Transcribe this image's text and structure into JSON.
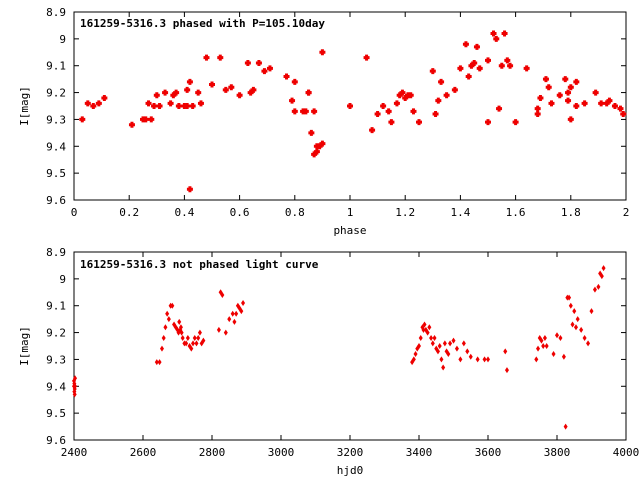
{
  "chart_data": [
    {
      "type": "scatter",
      "title": "161259-5316.3 phased with P=105.10day",
      "xlabel": "phase",
      "ylabel": "I[mag]",
      "xlim": [
        0,
        2
      ],
      "ylim": [
        8.9,
        9.6
      ],
      "y_inverted": true,
      "xticks": [
        0,
        0.2,
        0.4,
        0.6,
        0.8,
        1,
        1.2,
        1.4,
        1.6,
        1.8,
        2
      ],
      "yticks": [
        8.9,
        9,
        9.1,
        9.2,
        9.3,
        9.4,
        9.5,
        9.6
      ],
      "grid": false,
      "marker_color": "#ee0000",
      "marker": "star",
      "x": [
        0.03,
        0.05,
        0.07,
        0.09,
        0.11,
        0.21,
        0.25,
        0.26,
        0.27,
        0.28,
        0.29,
        0.3,
        0.31,
        0.33,
        0.35,
        0.36,
        0.37,
        0.38,
        0.4,
        0.41,
        0.41,
        0.42,
        0.42,
        0.43,
        0.45,
        0.46,
        0.48,
        0.5,
        0.53,
        0.55,
        0.57,
        0.6,
        0.63,
        0.64,
        0.65,
        0.67,
        0.69,
        0.71,
        0.77,
        0.79,
        0.8,
        0.8,
        0.83,
        0.84,
        0.85,
        0.85,
        0.86,
        0.87,
        0.87,
        0.88,
        0.88,
        0.89,
        0.9,
        0.9,
        1.0,
        1.06,
        1.08,
        1.1,
        1.12,
        1.14,
        1.15,
        1.17,
        1.18,
        1.19,
        1.2,
        1.21,
        1.22,
        1.23,
        1.25,
        1.3,
        1.31,
        1.32,
        1.33,
        1.35,
        1.38,
        1.4,
        1.42,
        1.43,
        1.44,
        1.45,
        1.46,
        1.47,
        1.5,
        1.5,
        1.52,
        1.53,
        1.54,
        1.55,
        1.56,
        1.57,
        1.58,
        1.6,
        1.64,
        1.68,
        1.68,
        1.69,
        1.71,
        1.72,
        1.73,
        1.76,
        1.78,
        1.79,
        1.79,
        1.8,
        1.8,
        1.82,
        1.82,
        1.85,
        1.89,
        1.91,
        1.93,
        1.94,
        1.96,
        1.98,
        1.99
      ],
      "y": [
        9.3,
        9.24,
        9.25,
        9.24,
        9.22,
        9.32,
        9.3,
        9.3,
        9.24,
        9.3,
        9.25,
        9.21,
        9.25,
        9.2,
        9.24,
        9.21,
        9.2,
        9.25,
        9.25,
        9.25,
        9.19,
        9.16,
        9.56,
        9.25,
        9.2,
        9.24,
        9.07,
        9.17,
        9.07,
        9.19,
        9.18,
        9.21,
        9.09,
        9.2,
        9.19,
        9.09,
        9.12,
        9.11,
        9.14,
        9.23,
        9.27,
        9.16,
        9.27,
        9.27,
        9.2,
        9.2,
        9.35,
        9.27,
        9.43,
        9.4,
        9.42,
        9.4,
        9.39,
        9.05,
        9.25,
        9.07,
        9.34,
        9.28,
        9.25,
        9.27,
        9.31,
        9.24,
        9.21,
        9.2,
        9.22,
        9.21,
        9.21,
        9.27,
        9.31,
        9.12,
        9.28,
        9.23,
        9.16,
        9.21,
        9.19,
        9.11,
        9.02,
        9.14,
        9.1,
        9.09,
        9.03,
        9.11,
        9.31,
        9.08,
        8.98,
        9.0,
        9.26,
        9.1,
        8.98,
        9.08,
        9.1,
        9.31,
        9.11,
        9.26,
        9.28,
        9.22,
        9.15,
        9.18,
        9.24,
        9.21,
        9.15,
        9.2,
        9.23,
        9.18,
        9.3,
        9.16,
        9.25,
        9.24,
        9.2,
        9.24,
        9.24,
        9.23,
        9.25,
        9.26,
        9.28
      ]
    },
    {
      "type": "scatter",
      "title": "161259-5316.3 not phased light curve",
      "xlabel": "hjd0",
      "ylabel": "I[mag]",
      "xlim": [
        2400,
        4000
      ],
      "ylim": [
        8.9,
        9.6
      ],
      "y_inverted": true,
      "xticks": [
        2400,
        2600,
        2800,
        3000,
        3200,
        3400,
        3600,
        3800,
        4000
      ],
      "yticks": [
        8.9,
        9,
        9.1,
        9.2,
        9.3,
        9.4,
        9.5,
        9.6
      ],
      "grid": false,
      "marker_color": "#ee0000",
      "marker": "diamond",
      "x": [
        2400,
        2400,
        2401,
        2401,
        2402,
        2402,
        2403,
        2403,
        2640,
        2648,
        2655,
        2660,
        2665,
        2670,
        2675,
        2680,
        2685,
        2690,
        2695,
        2700,
        2703,
        2705,
        2708,
        2710,
        2712,
        2715,
        2720,
        2725,
        2730,
        2735,
        2740,
        2745,
        2750,
        2755,
        2760,
        2765,
        2770,
        2775,
        2820,
        2825,
        2830,
        2840,
        2850,
        2860,
        2865,
        2870,
        2875,
        2880,
        2885,
        2890,
        3380,
        3385,
        3390,
        3395,
        3400,
        3405,
        3410,
        3413,
        3416,
        3420,
        3425,
        3430,
        3435,
        3440,
        3445,
        3450,
        3455,
        3460,
        3465,
        3470,
        3475,
        3480,
        3485,
        3490,
        3500,
        3510,
        3520,
        3530,
        3540,
        3550,
        3570,
        3590,
        3600,
        3650,
        3655,
        3740,
        3745,
        3750,
        3755,
        3760,
        3765,
        3770,
        3790,
        3800,
        3810,
        3820,
        3825,
        3830,
        3835,
        3840,
        3845,
        3850,
        3855,
        3860,
        3870,
        3880,
        3890,
        3900,
        3910,
        3920,
        3925,
        3930,
        3935
      ],
      "y": [
        9.38,
        9.4,
        9.42,
        9.39,
        9.41,
        9.43,
        9.4,
        9.37,
        9.31,
        9.31,
        9.26,
        9.22,
        9.18,
        9.13,
        9.15,
        9.1,
        9.1,
        9.17,
        9.18,
        9.19,
        9.2,
        9.16,
        9.19,
        9.18,
        9.2,
        9.22,
        9.24,
        9.24,
        9.22,
        9.25,
        9.26,
        9.24,
        9.22,
        9.24,
        9.22,
        9.2,
        9.24,
        9.23,
        9.19,
        9.05,
        9.06,
        9.2,
        9.15,
        9.13,
        9.16,
        9.13,
        9.1,
        9.11,
        9.12,
        9.09,
        9.31,
        9.3,
        9.28,
        9.26,
        9.25,
        9.22,
        9.18,
        9.19,
        9.17,
        9.19,
        9.2,
        9.18,
        9.22,
        9.24,
        9.22,
        9.26,
        9.27,
        9.25,
        9.3,
        9.33,
        9.24,
        9.27,
        9.28,
        9.24,
        9.23,
        9.26,
        9.3,
        9.24,
        9.27,
        9.29,
        9.3,
        9.3,
        9.3,
        9.27,
        9.34,
        9.3,
        9.26,
        9.22,
        9.23,
        9.25,
        9.22,
        9.25,
        9.28,
        9.21,
        9.22,
        9.29,
        9.55,
        9.07,
        9.07,
        9.1,
        9.17,
        9.12,
        9.18,
        9.15,
        9.19,
        9.22,
        9.24,
        9.12,
        9.04,
        9.03,
        8.98,
        8.99,
        8.96
      ]
    }
  ]
}
